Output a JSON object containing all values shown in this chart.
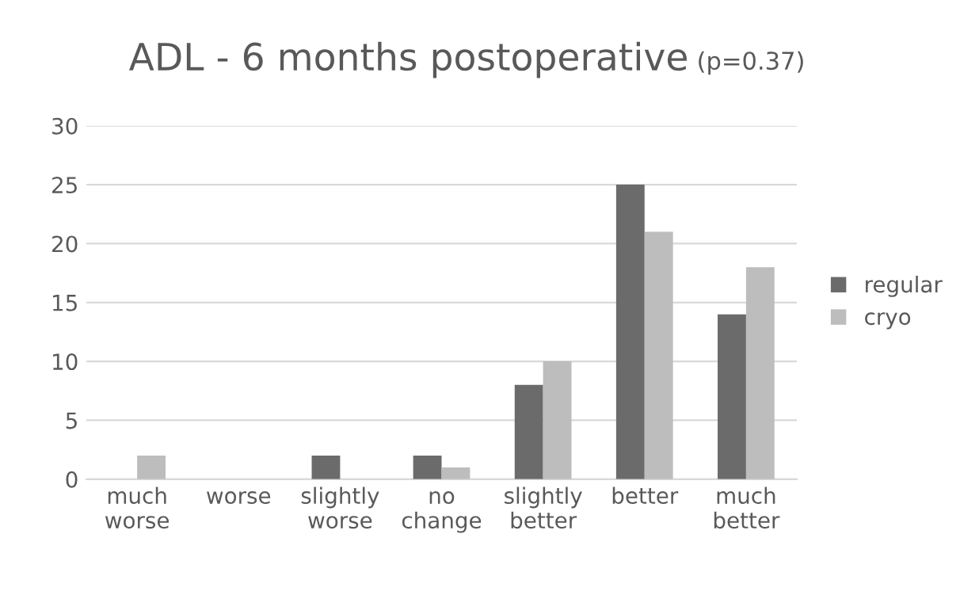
{
  "chart_data": {
    "type": "bar",
    "title": "ADL - 6 months postoperative",
    "subtitle": "(p=0.37)",
    "categories": [
      "much\nworse",
      "worse",
      "slightly\nworse",
      "no\nchange",
      "slightly\nbetter",
      "better",
      "much\nbetter"
    ],
    "series": [
      {
        "name": "regular",
        "color": "#6b6b6b",
        "values": [
          0,
          0,
          2,
          2,
          8,
          25,
          14
        ]
      },
      {
        "name": "cryo",
        "color": "#bdbdbd",
        "values": [
          2,
          0,
          0,
          1,
          10,
          21,
          18
        ]
      }
    ],
    "ylim": [
      0,
      30
    ],
    "yticks": [
      0,
      5,
      10,
      15,
      20,
      25,
      30
    ],
    "grid": "y",
    "legend": "right"
  }
}
